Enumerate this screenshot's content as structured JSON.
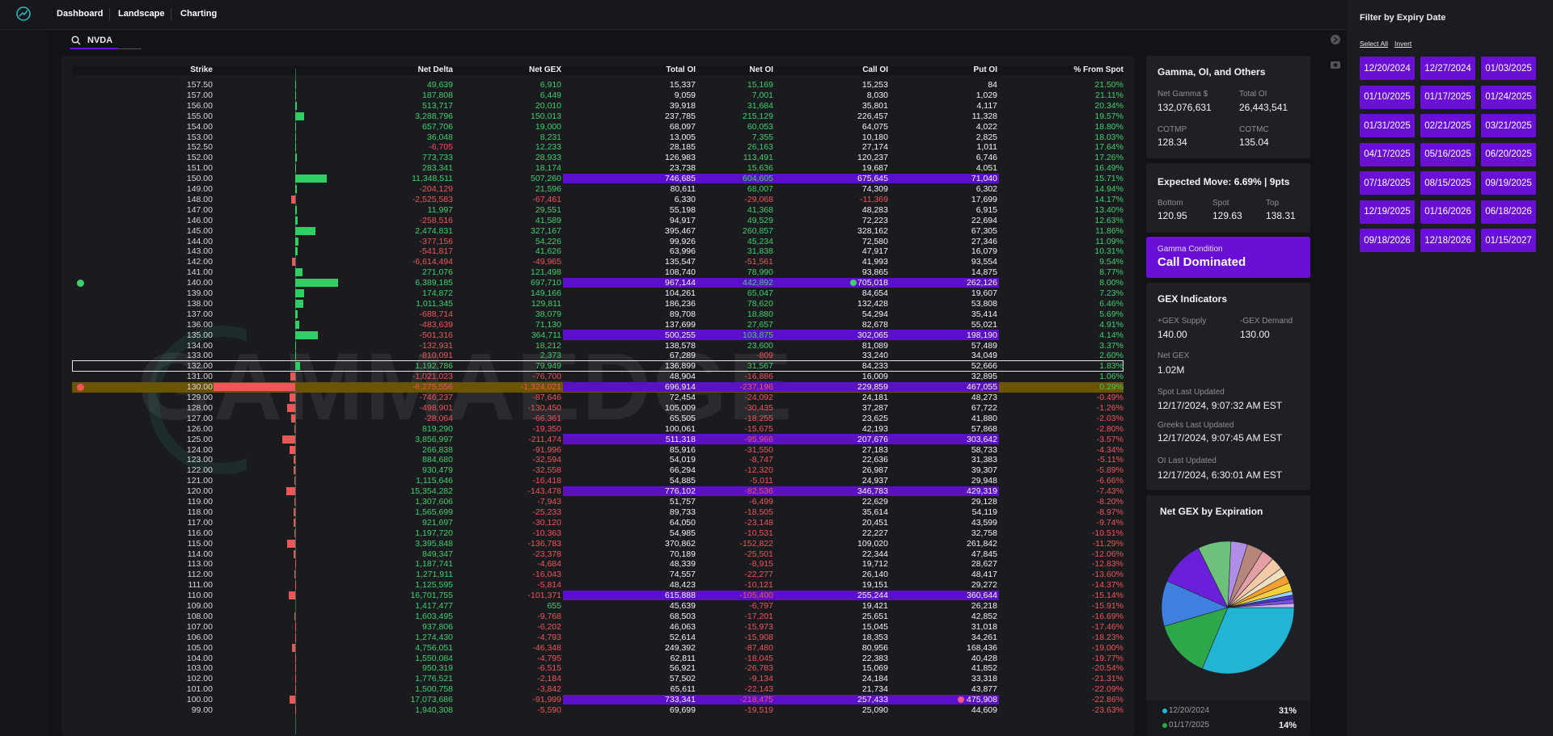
{
  "nav": {
    "items": [
      "Dashboard",
      "Landscape",
      "Charting"
    ]
  },
  "search": {
    "value": "NVDA"
  },
  "watermark": "GAMMAEDGE",
  "table": {
    "columns": [
      "Strike",
      "Net Delta",
      "Net GEX",
      "Total OI",
      "Net OI",
      "Call OI",
      "Put OI",
      "% From Spot"
    ],
    "highlighted_strikes": [
      "150.00",
      "140.00",
      "135.00",
      "130.00",
      "125.00",
      "120.00",
      "110.00",
      "100.00"
    ],
    "spot_strike": "130.00",
    "selected_strike": "132.00",
    "rows": [
      [
        "157.50",
        "49,639",
        "6,910",
        "15,337",
        "15,169",
        "15,253",
        "84",
        "21.50%"
      ],
      [
        "157.00",
        "187,808",
        "6,449",
        "9,059",
        "7,001",
        "8,030",
        "1,029",
        "21.11%"
      ],
      [
        "156.00",
        "513,717",
        "20,010",
        "39,918",
        "31,684",
        "35,801",
        "4,117",
        "20.34%"
      ],
      [
        "155.00",
        "3,288,796",
        "150,013",
        "237,785",
        "215,129",
        "226,457",
        "11,328",
        "19.57%"
      ],
      [
        "154.00",
        "657,706",
        "19,000",
        "68,097",
        "60,053",
        "64,075",
        "4,022",
        "18.80%"
      ],
      [
        "153.00",
        "36,048",
        "8,231",
        "13,005",
        "7,355",
        "10,180",
        "2,825",
        "18.03%"
      ],
      [
        "152.50",
        "-6,705",
        "12,233",
        "28,185",
        "26,163",
        "27,174",
        "1,011",
        "17.64%"
      ],
      [
        "152.00",
        "773,733",
        "28,933",
        "126,983",
        "113,491",
        "120,237",
        "6,746",
        "17.26%"
      ],
      [
        "151.00",
        "283,341",
        "18,174",
        "23,738",
        "15,636",
        "19,687",
        "4,051",
        "16.49%"
      ],
      [
        "150.00",
        "11,348,511",
        "507,260",
        "746,685",
        "604,605",
        "675,645",
        "71,040",
        "15.71%"
      ],
      [
        "149.00",
        "-204,129",
        "21,596",
        "80,611",
        "68,007",
        "74,309",
        "6,302",
        "14.94%"
      ],
      [
        "148.00",
        "-2,525,583",
        "-67,461",
        "6,330",
        "-29,068",
        "-11,369",
        "17,699",
        "14.17%"
      ],
      [
        "147.00",
        "11,997",
        "29,551",
        "55,198",
        "41,368",
        "48,283",
        "6,915",
        "13.40%"
      ],
      [
        "146.00",
        "-258,516",
        "41,589",
        "94,917",
        "49,529",
        "72,223",
        "22,694",
        "12.63%"
      ],
      [
        "145.00",
        "2,474,831",
        "327,167",
        "395,467",
        "260,857",
        "328,162",
        "67,305",
        "11.86%"
      ],
      [
        "144.00",
        "-377,156",
        "54,226",
        "99,926",
        "45,234",
        "72,580",
        "27,346",
        "11.09%"
      ],
      [
        "143.00",
        "-541,817",
        "41,626",
        "63,996",
        "31,838",
        "47,917",
        "16,079",
        "10.31%"
      ],
      [
        "142.00",
        "-6,614,494",
        "-49,965",
        "135,547",
        "-51,561",
        "41,993",
        "93,554",
        "9.54%"
      ],
      [
        "141.00",
        "271,076",
        "121,498",
        "108,740",
        "78,990",
        "93,865",
        "14,875",
        "8.77%"
      ],
      [
        "140.00",
        "6,389,185",
        "697,710",
        "967,144",
        "442,892",
        "705,018",
        "262,126",
        "8.00%"
      ],
      [
        "139.00",
        "174,872",
        "149,166",
        "104,261",
        "65,047",
        "84,654",
        "19,607",
        "7.23%"
      ],
      [
        "138.00",
        "1,011,345",
        "129,811",
        "186,236",
        "78,620",
        "132,428",
        "53,808",
        "6.46%"
      ],
      [
        "137.00",
        "-688,714",
        "38,079",
        "89,708",
        "18,880",
        "54,294",
        "35,414",
        "5.69%"
      ],
      [
        "136.00",
        "-483,639",
        "71,130",
        "137,699",
        "27,657",
        "82,678",
        "55,021",
        "4.91%"
      ],
      [
        "135.00",
        "-501,316",
        "364,711",
        "500,255",
        "103,875",
        "302,065",
        "198,190",
        "4.14%"
      ],
      [
        "134.00",
        "-132,931",
        "18,212",
        "138,578",
        "23,600",
        "81,089",
        "57,489",
        "3.37%"
      ],
      [
        "133.00",
        "-810,091",
        "2,373",
        "67,289",
        "-809",
        "33,240",
        "34,049",
        "2.60%"
      ],
      [
        "132.00",
        "1,192,786",
        "79,949",
        "136,899",
        "31,567",
        "84,233",
        "52,666",
        "1.83%"
      ],
      [
        "131.00",
        "-1,021,023",
        "-76,700",
        "48,904",
        "-16,886",
        "16,009",
        "32,895",
        "1.06%"
      ],
      [
        "130.00",
        "-6,275,556",
        "-1,324,021",
        "696,914",
        "-237,196",
        "229,859",
        "467,055",
        "0.29%"
      ],
      [
        "129.00",
        "-746,237",
        "-87,646",
        "72,454",
        "-24,092",
        "24,181",
        "48,273",
        "-0.49%"
      ],
      [
        "128.00",
        "-498,901",
        "-130,450",
        "105,009",
        "-30,435",
        "37,287",
        "67,722",
        "-1.26%"
      ],
      [
        "127.00",
        "-28,064",
        "-66,361",
        "65,505",
        "-18,255",
        "23,625",
        "41,880",
        "-2.03%"
      ],
      [
        "126.00",
        "819,290",
        "-19,350",
        "100,061",
        "-15,675",
        "42,193",
        "57,868",
        "-2.80%"
      ],
      [
        "125.00",
        "3,856,997",
        "-211,474",
        "511,318",
        "-95,966",
        "207,676",
        "303,642",
        "-3.57%"
      ],
      [
        "124.00",
        "266,838",
        "-91,996",
        "85,916",
        "-31,550",
        "27,183",
        "58,733",
        "-4.34%"
      ],
      [
        "123.00",
        "884,680",
        "-32,594",
        "54,019",
        "-8,747",
        "22,636",
        "31,383",
        "-5.11%"
      ],
      [
        "122.00",
        "930,479",
        "-32,558",
        "66,294",
        "-12,320",
        "26,987",
        "39,307",
        "-5.89%"
      ],
      [
        "121.00",
        "1,115,646",
        "-16,418",
        "54,885",
        "-5,011",
        "24,937",
        "29,948",
        "-6.66%"
      ],
      [
        "120.00",
        "15,354,282",
        "-143,478",
        "776,102",
        "-82,536",
        "346,783",
        "429,319",
        "-7.43%"
      ],
      [
        "119.00",
        "1,307,606",
        "-7,943",
        "51,757",
        "-6,499",
        "22,629",
        "29,128",
        "-8.20%"
      ],
      [
        "118.00",
        "1,565,699",
        "-25,233",
        "89,733",
        "-18,505",
        "35,614",
        "54,119",
        "-8.97%"
      ],
      [
        "117.00",
        "921,697",
        "-30,120",
        "64,050",
        "-23,148",
        "20,451",
        "43,599",
        "-9.74%"
      ],
      [
        "116.00",
        "1,197,720",
        "-10,363",
        "54,985",
        "-10,531",
        "22,227",
        "32,758",
        "-10.51%"
      ],
      [
        "115.00",
        "3,395,848",
        "-136,783",
        "370,862",
        "-152,822",
        "109,020",
        "261,842",
        "-11.29%"
      ],
      [
        "114.00",
        "849,347",
        "-23,378",
        "70,189",
        "-25,501",
        "22,344",
        "47,845",
        "-12.06%"
      ],
      [
        "113.00",
        "1,187,741",
        "-4,684",
        "48,339",
        "-8,915",
        "19,712",
        "28,627",
        "-12.83%"
      ],
      [
        "112.00",
        "1,271,911",
        "-16,043",
        "74,557",
        "-22,277",
        "26,140",
        "48,417",
        "-13.60%"
      ],
      [
        "111.00",
        "1,125,595",
        "-5,814",
        "48,423",
        "-10,121",
        "19,151",
        "29,272",
        "-14.37%"
      ],
      [
        "110.00",
        "16,701,755",
        "-101,371",
        "615,888",
        "-105,400",
        "255,244",
        "360,644",
        "-15.14%"
      ],
      [
        "109.00",
        "1,417,477",
        "655",
        "45,639",
        "-6,797",
        "19,421",
        "26,218",
        "-15.91%"
      ],
      [
        "108.00",
        "1,603,495",
        "-9,768",
        "68,503",
        "-17,201",
        "25,651",
        "42,852",
        "-16.69%"
      ],
      [
        "107.00",
        "937,806",
        "-6,202",
        "46,063",
        "-15,973",
        "15,045",
        "31,018",
        "-17.46%"
      ],
      [
        "106.00",
        "1,274,430",
        "-4,793",
        "52,614",
        "-15,908",
        "18,353",
        "34,261",
        "-18.23%"
      ],
      [
        "105.00",
        "4,756,051",
        "-46,348",
        "249,392",
        "-87,480",
        "80,956",
        "168,436",
        "-19.00%"
      ],
      [
        "104.00",
        "1,550,084",
        "-4,795",
        "62,811",
        "-18,045",
        "22,383",
        "40,428",
        "-19.77%"
      ],
      [
        "103.00",
        "950,319",
        "-6,515",
        "56,921",
        "-26,783",
        "15,069",
        "41,852",
        "-20.54%"
      ],
      [
        "102.00",
        "1,776,521",
        "-2,184",
        "57,502",
        "-9,134",
        "24,184",
        "33,318",
        "-21.31%"
      ],
      [
        "101.00",
        "1,500,758",
        "-3,842",
        "65,611",
        "-22,143",
        "21,734",
        "43,877",
        "-22.09%"
      ],
      [
        "100.00",
        "17,073,686",
        "-91,999",
        "733,341",
        "-218,475",
        "257,433",
        "475,908",
        "-22.86%"
      ],
      [
        "99.00",
        "1,940,308",
        "-5,590",
        "69,699",
        "-19,519",
        "25,090",
        "44,609",
        "-23.63%"
      ]
    ]
  },
  "overview": {
    "title": "Gamma, OI, and Others",
    "net_gamma_label": "Net Gamma $",
    "net_gamma": "132,076,631",
    "total_oi_label": "Total OI",
    "total_oi": "26,443,541",
    "cotmp_label": "COTMP",
    "cotmp": "128.34",
    "cotmc_label": "COTMC",
    "cotmc": "135.04"
  },
  "expected_move": {
    "title": "Expected Move: 6.69% | 9pts",
    "bottom_label": "Bottom",
    "bottom": "120.95",
    "spot_label": "Spot",
    "spot": "129.63",
    "top_label": "Top",
    "top": "138.31"
  },
  "gamma_condition": {
    "label": "Gamma Condition",
    "value": "Call Dominated"
  },
  "gex_indicators": {
    "title": "GEX Indicators",
    "supply_label": "+GEX Supply",
    "supply": "140.00",
    "demand_label": "-GEX Demand",
    "demand": "130.00",
    "net_gex_label": "Net GEX",
    "net_gex": "1.02M",
    "spot_updated_label": "Spot Last Updated",
    "spot_updated": "12/17/2024, 9:07:32 AM EST",
    "greeks_updated_label": "Greeks Last Updated",
    "greeks_updated": "12/17/2024, 9:07:45 AM EST",
    "oi_updated_label": "OI Last Updated",
    "oi_updated": "12/17/2024, 6:30:01 AM EST"
  },
  "net_gex_by_expiration": {
    "type": "pie",
    "title": "Net GEX by Expiration",
    "slices": [
      {
        "name": "12/20/2024",
        "value": 31,
        "value_label": "31%",
        "color": "#22b4d4"
      },
      {
        "name": "01/17/2025",
        "value": 14,
        "value_label": "14%",
        "color": "#2ea64a"
      },
      {
        "name": null,
        "value": 11,
        "value_label": null,
        "color": "#3f7fe0"
      },
      {
        "name": null,
        "value": 11,
        "value_label": null,
        "color": "#6a1fd9"
      },
      {
        "name": null,
        "value": 8,
        "value_label": null,
        "color": "#6cc27a"
      },
      {
        "name": null,
        "value": 4,
        "value_label": null,
        "color": "#b08ee6"
      },
      {
        "name": null,
        "value": 4,
        "value_label": null,
        "color": "#b5877a"
      },
      {
        "name": null,
        "value": 3,
        "value_label": null,
        "color": "#e59fa6"
      },
      {
        "name": null,
        "value": 3,
        "value_label": null,
        "color": "#f4c9a6"
      },
      {
        "name": null,
        "value": 2,
        "value_label": null,
        "color": "#efe0c2"
      },
      {
        "name": null,
        "value": 2,
        "value_label": null,
        "color": "#f5a030"
      },
      {
        "name": null,
        "value": 2,
        "value_label": null,
        "color": "#f3d03c"
      },
      {
        "name": null,
        "value": 1,
        "value_label": null,
        "color": "#9ad0f0"
      },
      {
        "name": null,
        "value": 1,
        "value_label": null,
        "color": "#4a3bd0"
      },
      {
        "name": null,
        "value": 1,
        "value_label": null,
        "color": "#7b52e0"
      },
      {
        "name": null,
        "value": 1,
        "value_label": null,
        "color": "#c9b3f5"
      }
    ]
  },
  "filter": {
    "title": "Filter by Expiry Date",
    "select_all": "Select All",
    "invert": "Invert",
    "dates": [
      "12/20/2024",
      "12/27/2024",
      "01/03/2025",
      "01/10/2025",
      "01/17/2025",
      "01/24/2025",
      "01/31/2025",
      "02/21/2025",
      "03/21/2025",
      "04/17/2025",
      "05/16/2025",
      "06/20/2025",
      "07/18/2025",
      "08/15/2025",
      "09/19/2025",
      "12/19/2025",
      "01/16/2026",
      "06/18/2026",
      "09/18/2026",
      "12/18/2026",
      "01/15/2027"
    ]
  }
}
